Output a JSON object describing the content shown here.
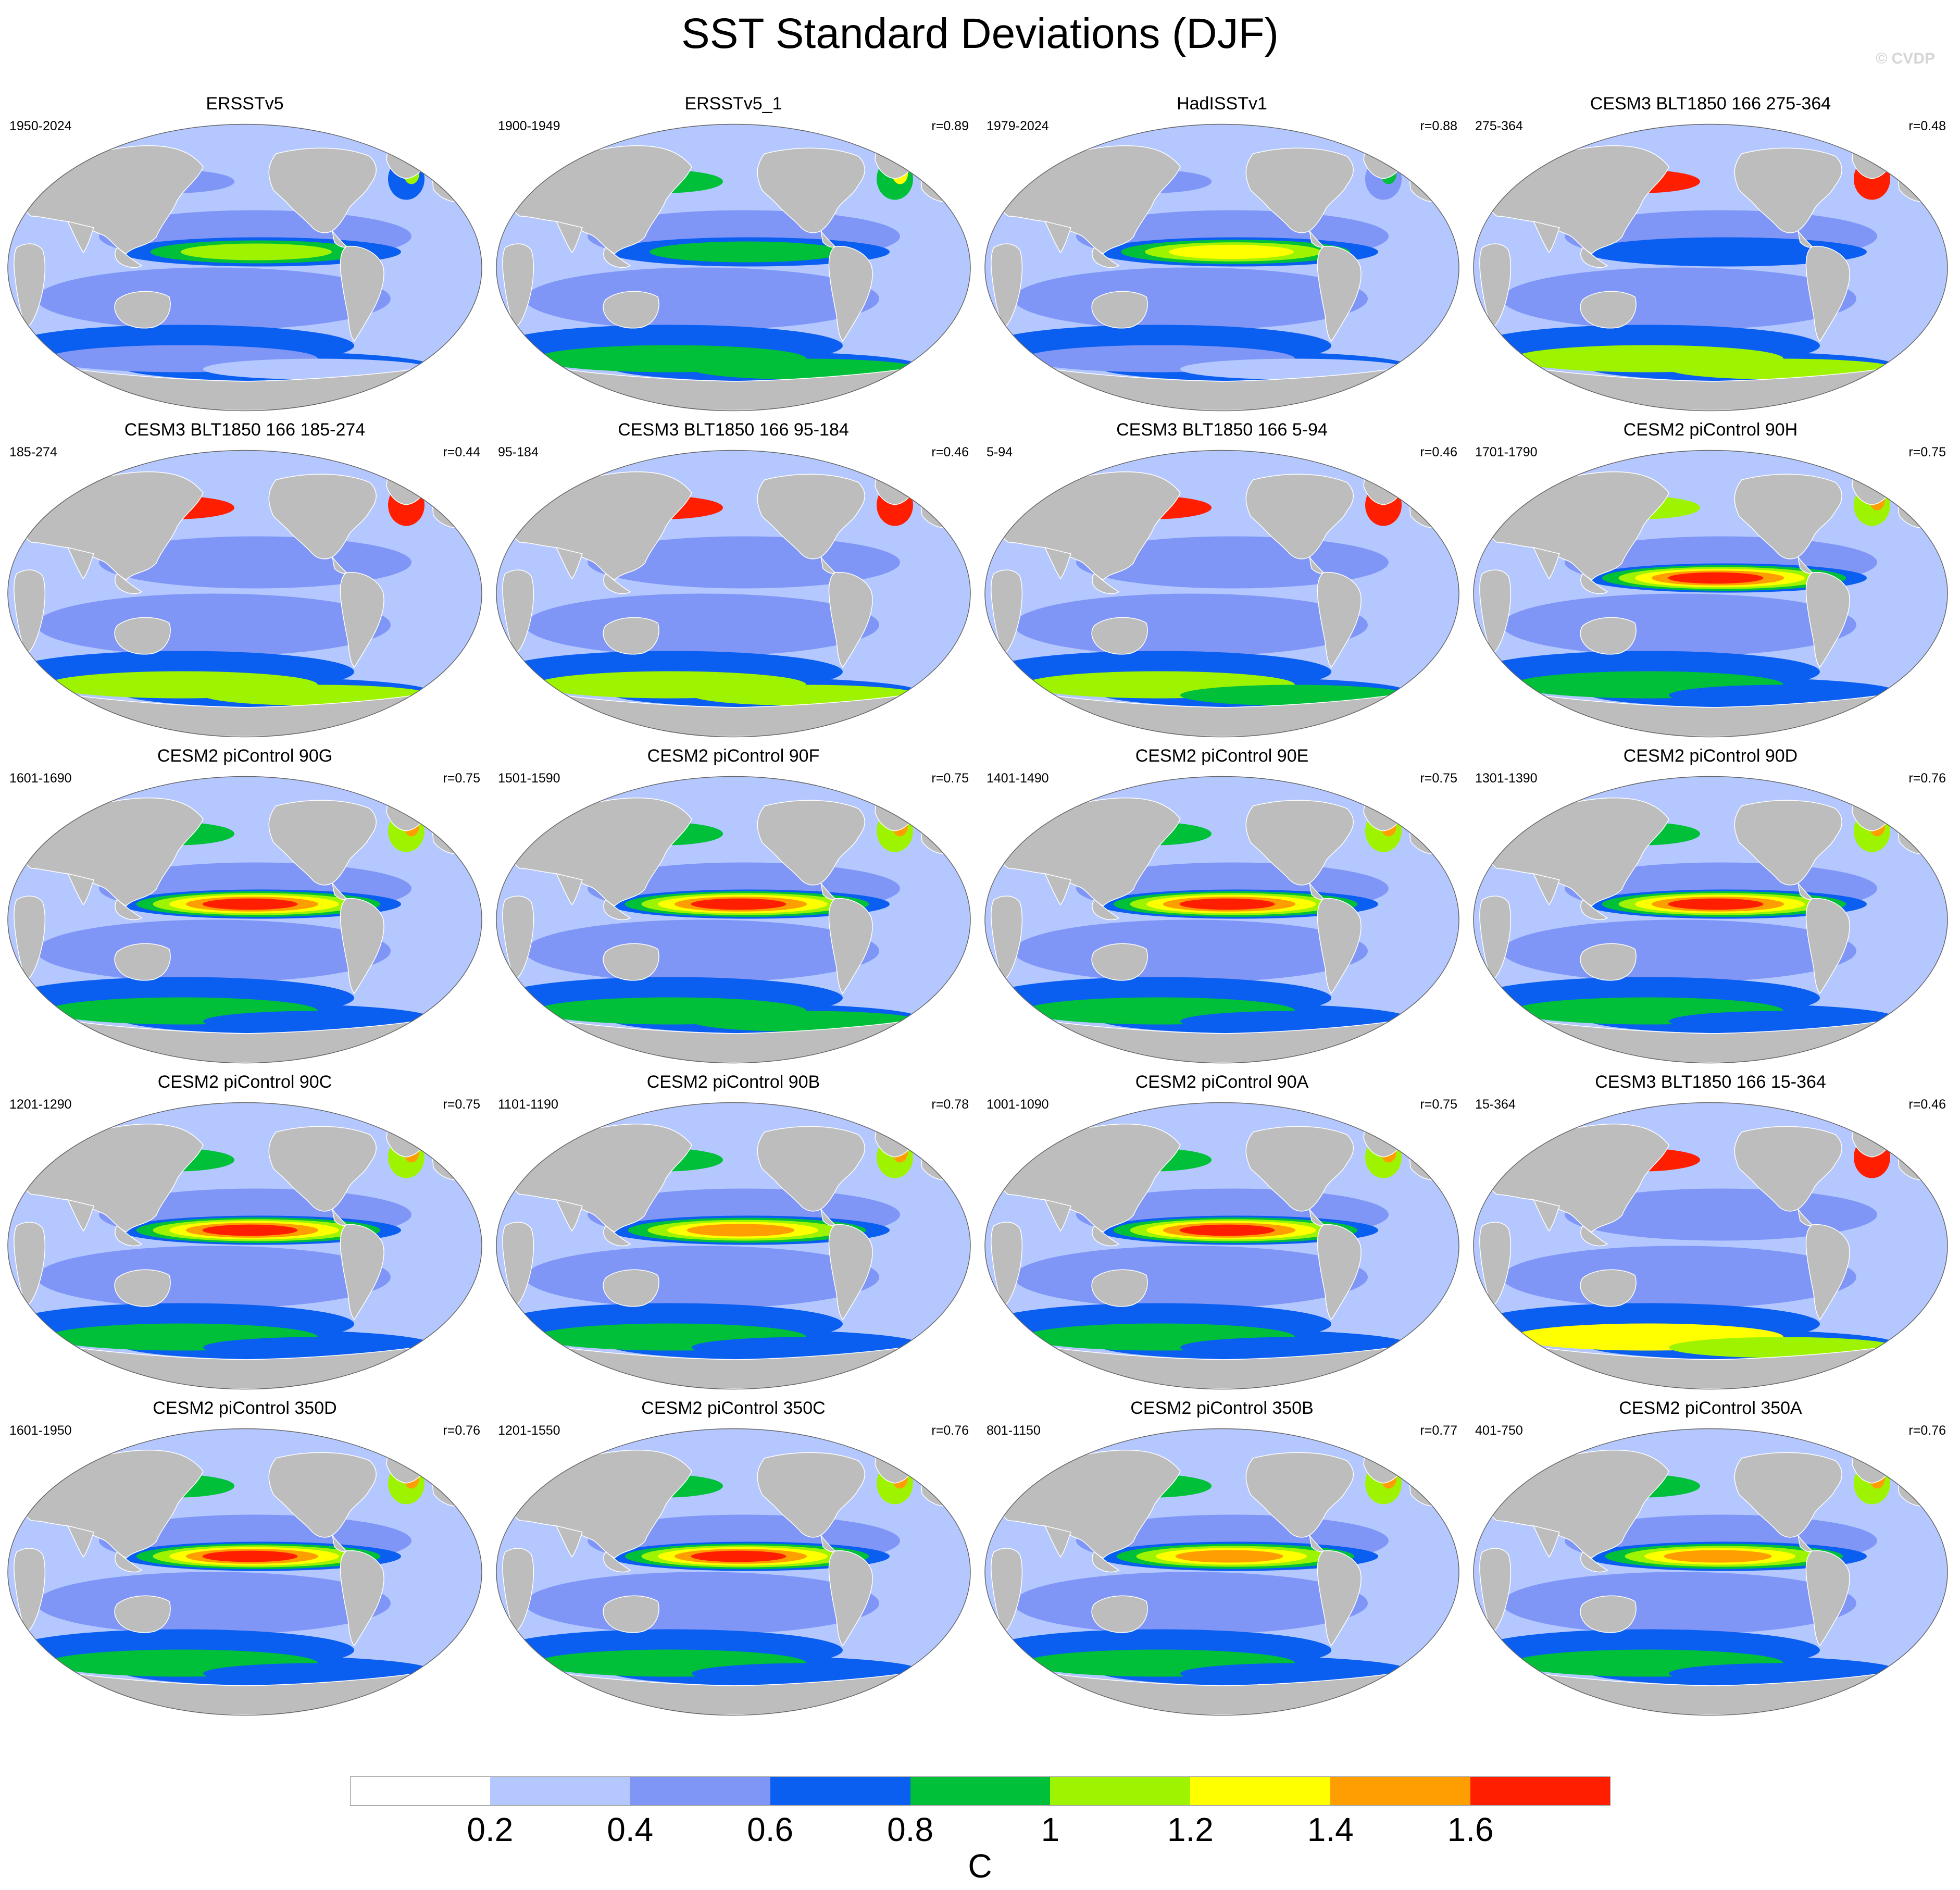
{
  "figure": {
    "title": "SST Standard Deviations (DJF)",
    "watermark": "© CVDP"
  },
  "panels": [
    {
      "title": "ERSSTv5",
      "period": "1950-2024",
      "corr": "",
      "enso": 1.15,
      "north_pacific": 0.5,
      "southern_ocean": 0.45
    },
    {
      "title": "ERSSTv5_1",
      "period": "1900-1949",
      "corr": "r=0.89",
      "enso": 1.0,
      "north_pacific": 0.85,
      "southern_ocean": 0.9
    },
    {
      "title": "HadISSTv1",
      "period": "1979-2024",
      "corr": "r=0.88",
      "enso": 1.3,
      "north_pacific": 0.45,
      "southern_ocean": 0.4
    },
    {
      "title": "CESM3 BLT1850 166 275-364",
      "period": "275-364",
      "corr": "r=0.48",
      "enso": 0.7,
      "north_pacific": 1.7,
      "southern_ocean": 1.1
    },
    {
      "title": "CESM3 BLT1850 166 185-274",
      "period": "185-274",
      "corr": "r=0.44",
      "enso": 0.6,
      "north_pacific": 1.7,
      "southern_ocean": 1.1
    },
    {
      "title": "CESM3 BLT1850 166 95-184",
      "period": "95-184",
      "corr": "r=0.46",
      "enso": 0.6,
      "north_pacific": 1.7,
      "southern_ocean": 1.1
    },
    {
      "title": "CESM3 BLT1850 166 5-94",
      "period": "5-94",
      "corr": "r=0.46",
      "enso": 0.6,
      "north_pacific": 1.7,
      "southern_ocean": 1.0
    },
    {
      "title": "CESM2 piControl 90H",
      "period": "1701-1790",
      "corr": "r=0.75",
      "enso": 1.7,
      "north_pacific": 1.0,
      "southern_ocean": 0.8
    },
    {
      "title": "CESM2 piControl 90G",
      "period": "1601-1690",
      "corr": "r=0.75",
      "enso": 1.7,
      "north_pacific": 0.9,
      "southern_ocean": 0.8
    },
    {
      "title": "CESM2 piControl 90F",
      "period": "1501-1590",
      "corr": "r=0.75",
      "enso": 1.8,
      "north_pacific": 0.9,
      "southern_ocean": 0.9
    },
    {
      "title": "CESM2 piControl 90E",
      "period": "1401-1490",
      "corr": "r=0.75",
      "enso": 1.7,
      "north_pacific": 0.9,
      "southern_ocean": 0.8
    },
    {
      "title": "CESM2 piControl 90D",
      "period": "1301-1390",
      "corr": "r=0.76",
      "enso": 1.7,
      "north_pacific": 0.9,
      "southern_ocean": 0.8
    },
    {
      "title": "CESM2 piControl 90C",
      "period": "1201-1290",
      "corr": "r=0.75",
      "enso": 1.7,
      "north_pacific": 0.9,
      "southern_ocean": 0.8
    },
    {
      "title": "CESM2 piControl 90B",
      "period": "1101-1190",
      "corr": "r=0.78",
      "enso": 1.6,
      "north_pacific": 0.9,
      "southern_ocean": 0.8
    },
    {
      "title": "CESM2 piControl 90A",
      "period": "1001-1090",
      "corr": "r=0.75",
      "enso": 1.7,
      "north_pacific": 0.9,
      "southern_ocean": 0.8
    },
    {
      "title": "CESM3 BLT1850 166 15-364",
      "period": "15-364",
      "corr": "r=0.46",
      "enso": 0.6,
      "north_pacific": 1.7,
      "southern_ocean": 1.2
    },
    {
      "title": "CESM2 piControl 350D",
      "period": "1601-1950",
      "corr": "r=0.76",
      "enso": 1.7,
      "north_pacific": 0.9,
      "southern_ocean": 0.8
    },
    {
      "title": "CESM2 piControl 350C",
      "period": "1201-1550",
      "corr": "r=0.76",
      "enso": 1.7,
      "north_pacific": 0.9,
      "southern_ocean": 0.8
    },
    {
      "title": "CESM2 piControl 350B",
      "period": "801-1150",
      "corr": "r=0.77",
      "enso": 1.6,
      "north_pacific": 0.9,
      "southern_ocean": 0.8
    },
    {
      "title": "CESM2 piControl 350A",
      "period": "401-750",
      "corr": "r=0.76",
      "enso": 1.6,
      "north_pacific": 0.9,
      "southern_ocean": 0.8
    }
  ],
  "colorbar": {
    "unit": "C",
    "tick_labels": [
      "0.2",
      "0.4",
      "0.6",
      "0.8",
      "1",
      "1.2",
      "1.4",
      "1.6"
    ],
    "levels": [
      0.2,
      0.4,
      0.6,
      0.8,
      1.0,
      1.2,
      1.4,
      1.6
    ],
    "colors": [
      "#ffffff",
      "#b4c8ff",
      "#7f96f6",
      "#0a5ef0",
      "#00c03a",
      "#9ef400",
      "#ffff00",
      "#ff9e00",
      "#ff1e00"
    ]
  },
  "map_colors": {
    "land": "#bdbdbd",
    "coast": "#ffffff"
  }
}
